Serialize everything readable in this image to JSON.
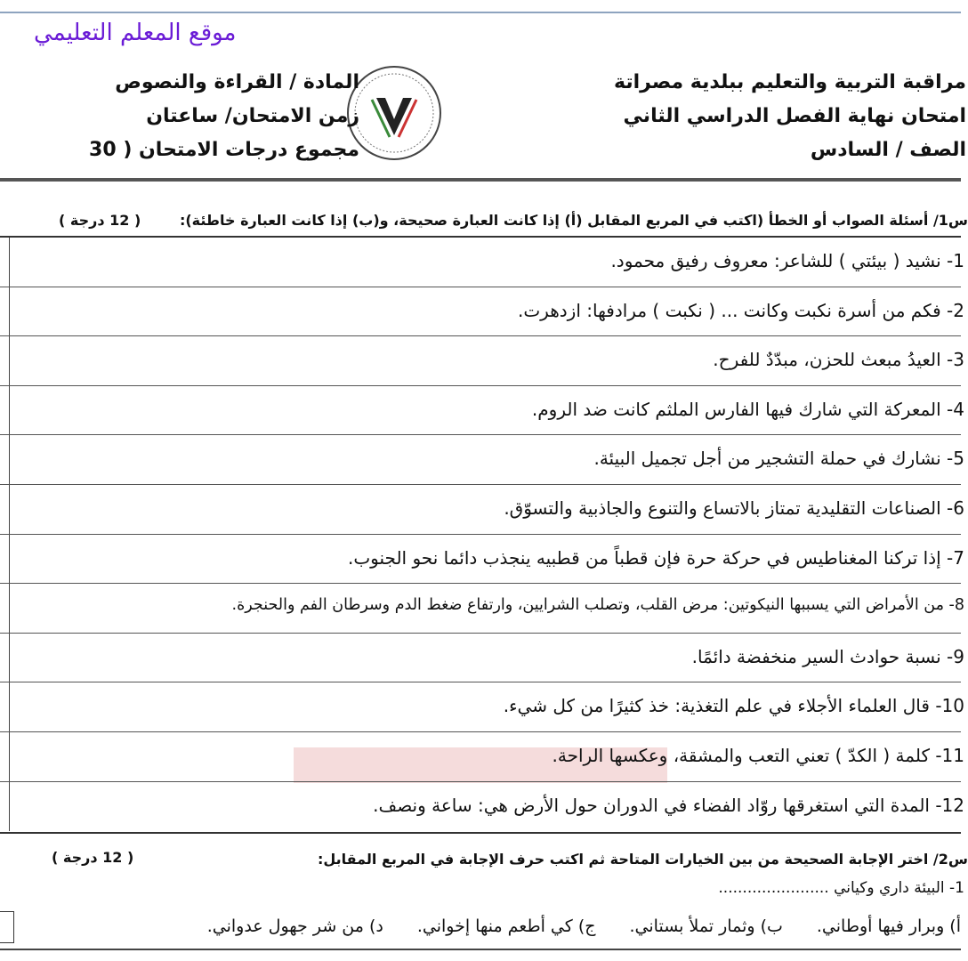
{
  "watermark_site": "موقع المعلم التعليمي",
  "header": {
    "right": [
      "مراقبة التربية والتعليم ببلدية مصراتة",
      "امتحان نهاية الفصل الدراسي الثاني",
      "الصف / السادس"
    ],
    "left": [
      "المادة / القراءة والنصوص",
      "زمن الامتحان/ ساعتان",
      "مجموع درجات الامتحان ( 30"
    ],
    "logo": "emblem-logo"
  },
  "q1": {
    "title": "س1/ أسئلة الصواب أو الخطأ (اكتب في المربع المقابل (أ) إذا كانت العبارة صحيحة، و(ب) إذا كانت العبارة خاطئة):",
    "grade": "( 12 درجة )",
    "items": [
      "1- نشيد ( بيئتي ) للشاعر: معروف رفيق محمود.",
      "2- فكم من أسرة نكبت وكانت ... ( نكبت ) مرادفها: ازدهرت.",
      "3- العيدُ مبعث للحزن، مبدّدٌ للفرح.",
      "4- المعركة التي شارك فيها الفارس الملثم كانت ضد الروم.",
      "5- نشارك في حملة التشجير من أجل تجميل البيئة.",
      "6- الصناعات التقليدية تمتاز بالاتساع والتنوع والجاذبية والتسوّق.",
      "7- إذا تركنا المغناطيس في حركة حرة فإن قطباً من قطبيه ينجذب دائما نحو الجنوب.",
      "8- من الأمراض التي يسببها النيكوتين: مرض القلب، وتصلب الشرايين، وارتفاع ضغط الدم وسرطان الفم والحنجرة.",
      "9- نسبة حوادث السير منخفضة دائمًا.",
      "10- قال العلماء الأجلاء في علم التغذية: خذ كثيرًا من كل شيء.",
      "11- كلمة ( الكدّ ) تعني التعب والمشقة، وعكسها الراحة.",
      "12- المدة التي استغرقها روّاد الفضاء في الدوران حول الأرض هي: ساعة ونصف."
    ]
  },
  "q2": {
    "title": "س2/ اختر الإجابة الصحيحة من بين الخيارات المتاحة ثم اكتب حرف الإجابة في المربع المقابل:",
    "grade": "( 12 درجة )",
    "stem": "1- البيئة داري وكياني .......................",
    "options": [
      "أ) وبرار فيها أوطاني.",
      "ب) وثمار تملأ بستاني.",
      "ج) كي أطعم منها إخواني.",
      "د) من شر جهول عدواني."
    ]
  }
}
